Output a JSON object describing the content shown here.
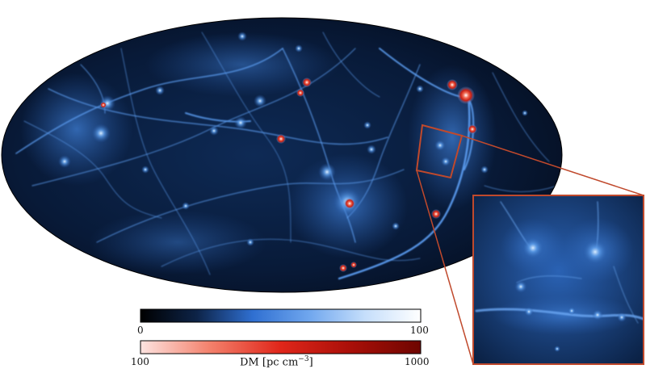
{
  "figure": {
    "colorbar_blue": {
      "min_label": "0",
      "max_label": "100",
      "colors": [
        "#000000",
        "#0d2347",
        "#2f6fd1",
        "#6fa6ee",
        "#c5defb",
        "#ffffff"
      ]
    },
    "colorbar_red": {
      "min_label": "100",
      "max_label": "1000",
      "colors": [
        "#fde3e0",
        "#f3806b",
        "#e0261a",
        "#a90f08",
        "#6e0500"
      ]
    },
    "quantity_label": "DM [pc cm",
    "quantity_exponent": "−3",
    "quantity_close": "]",
    "accent_color": "#c0492c"
  }
}
